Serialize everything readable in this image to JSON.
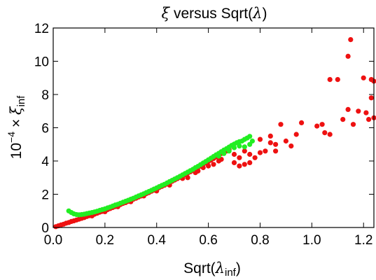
{
  "chart_data": {
    "type": "scatter",
    "title_parts": {
      "symbol": "ξ",
      "mid": " versus Sqrt(",
      "symbol2": "λ",
      "end": ")"
    },
    "xlabel_parts": {
      "main": "Sqrt(",
      "symbol": "λ",
      "sub": "inf",
      "end": ")"
    },
    "ylabel_parts": {
      "base": "10",
      "exp": "−4",
      "mid": " × ",
      "symbol": "ξ",
      "sub": "inf"
    },
    "xlim": [
      0.0,
      1.24
    ],
    "ylim": [
      0.0,
      12.0
    ],
    "x_ticks": [
      0.0,
      0.2,
      0.4,
      0.6,
      0.8,
      1.0,
      1.2
    ],
    "x_tick_labels": [
      "0.0",
      "0.2",
      "0.4",
      "0.6",
      "0.8",
      "1.0",
      "1.2"
    ],
    "y_ticks": [
      0,
      2,
      4,
      6,
      8,
      10,
      12
    ],
    "y_tick_labels": [
      "0",
      "2",
      "4",
      "6",
      "8",
      "10",
      "12"
    ],
    "grid": false,
    "legend": "none",
    "series": [
      {
        "color": "#ee1111",
        "points": [
          [
            0.01,
            0.05
          ],
          [
            0.02,
            0.1
          ],
          [
            0.03,
            0.15
          ],
          [
            0.04,
            0.2
          ],
          [
            0.05,
            0.26
          ],
          [
            0.06,
            0.3
          ],
          [
            0.07,
            0.36
          ],
          [
            0.08,
            0.4
          ],
          [
            0.09,
            0.45
          ],
          [
            0.1,
            0.5
          ],
          [
            0.11,
            0.55
          ],
          [
            0.12,
            0.6
          ],
          [
            0.13,
            0.66
          ],
          [
            0.14,
            0.71
          ],
          [
            0.15,
            0.76
          ],
          [
            0.16,
            0.8
          ],
          [
            0.17,
            0.86
          ],
          [
            0.18,
            0.92
          ],
          [
            0.19,
            0.97
          ],
          [
            0.2,
            1.02
          ],
          [
            0.21,
            1.08
          ],
          [
            0.22,
            1.14
          ],
          [
            0.23,
            1.2
          ],
          [
            0.24,
            1.26
          ],
          [
            0.25,
            1.32
          ],
          [
            0.26,
            1.38
          ],
          [
            0.27,
            1.45
          ],
          [
            0.28,
            1.5
          ],
          [
            0.29,
            1.57
          ],
          [
            0.3,
            1.63
          ],
          [
            0.31,
            1.7
          ],
          [
            0.32,
            1.76
          ],
          [
            0.33,
            1.83
          ],
          [
            0.34,
            1.9
          ],
          [
            0.35,
            1.97
          ],
          [
            0.36,
            2.04
          ],
          [
            0.37,
            2.1
          ],
          [
            0.38,
            2.18
          ],
          [
            0.39,
            2.25
          ],
          [
            0.4,
            2.32
          ],
          [
            0.41,
            2.4
          ],
          [
            0.42,
            2.47
          ],
          [
            0.43,
            2.54
          ],
          [
            0.44,
            2.62
          ],
          [
            0.45,
            2.7
          ],
          [
            0.46,
            2.78
          ],
          [
            0.47,
            2.86
          ],
          [
            0.48,
            2.94
          ],
          [
            0.49,
            3.02
          ],
          [
            0.5,
            3.1
          ],
          [
            0.51,
            3.18
          ],
          [
            0.52,
            3.27
          ],
          [
            0.53,
            3.35
          ],
          [
            0.54,
            3.44
          ],
          [
            0.55,
            3.52
          ],
          [
            0.56,
            3.6
          ],
          [
            0.57,
            3.7
          ],
          [
            0.58,
            3.8
          ],
          [
            0.59,
            3.88
          ],
          [
            0.6,
            3.97
          ],
          [
            0.61,
            4.05
          ],
          [
            0.62,
            4.15
          ],
          [
            0.63,
            4.25
          ],
          [
            0.64,
            4.35
          ],
          [
            0.65,
            4.45
          ],
          [
            0.66,
            4.55
          ],
          [
            0.67,
            4.6
          ],
          [
            0.68,
            4.7
          ],
          [
            0.15,
            0.7
          ],
          [
            0.2,
            0.95
          ],
          [
            0.25,
            1.25
          ],
          [
            0.3,
            1.55
          ],
          [
            0.35,
            1.9
          ],
          [
            0.4,
            2.2
          ],
          [
            0.45,
            2.55
          ],
          [
            0.5,
            2.95
          ],
          [
            0.55,
            3.3
          ],
          [
            0.6,
            3.7
          ],
          [
            0.65,
            4.1
          ],
          [
            0.7,
            4.4
          ],
          [
            0.72,
            4.2
          ],
          [
            0.74,
            4.6
          ],
          [
            0.76,
            4.4
          ],
          [
            0.78,
            4.2
          ],
          [
            0.8,
            4.5
          ],
          [
            0.82,
            4.6
          ],
          [
            0.76,
            3.9
          ],
          [
            0.74,
            3.8
          ],
          [
            0.72,
            3.7
          ],
          [
            0.7,
            3.9
          ],
          [
            0.84,
            5.1
          ],
          [
            0.86,
            5.0
          ],
          [
            0.88,
            6.2
          ],
          [
            0.9,
            5.2
          ],
          [
            0.92,
            4.9
          ],
          [
            0.94,
            5.6
          ],
          [
            0.96,
            6.3
          ],
          [
            0.86,
            4.6
          ],
          [
            0.8,
            5.3
          ],
          [
            0.84,
            5.5
          ],
          [
            1.02,
            6.1
          ],
          [
            1.04,
            6.2
          ],
          [
            1.07,
            5.6
          ],
          [
            1.05,
            5.7
          ],
          [
            1.12,
            6.5
          ],
          [
            1.16,
            6.2
          ],
          [
            1.07,
            8.9
          ],
          [
            1.1,
            8.9
          ],
          [
            1.15,
            11.3
          ],
          [
            1.14,
            10.3
          ],
          [
            1.18,
            7.0
          ],
          [
            1.2,
            9.0
          ],
          [
            1.21,
            6.9
          ],
          [
            1.22,
            6.5
          ],
          [
            1.23,
            8.9
          ],
          [
            1.23,
            7.8
          ],
          [
            1.24,
            8.8
          ],
          [
            1.24,
            6.6
          ],
          [
            1.14,
            7.1
          ],
          [
            0.62,
            3.8
          ],
          [
            0.64,
            4.0
          ],
          [
            0.58,
            3.6
          ],
          [
            0.56,
            3.4
          ],
          [
            0.52,
            3.0
          ]
        ]
      },
      {
        "color": "#22ee22",
        "points": [
          [
            0.06,
            1.0
          ],
          [
            0.07,
            0.9
          ],
          [
            0.08,
            0.82
          ],
          [
            0.09,
            0.78
          ],
          [
            0.1,
            0.76
          ],
          [
            0.11,
            0.78
          ],
          [
            0.12,
            0.8
          ],
          [
            0.13,
            0.84
          ],
          [
            0.14,
            0.87
          ],
          [
            0.15,
            0.9
          ],
          [
            0.16,
            0.94
          ],
          [
            0.17,
            0.98
          ],
          [
            0.18,
            1.03
          ],
          [
            0.19,
            1.08
          ],
          [
            0.2,
            1.12
          ],
          [
            0.21,
            1.18
          ],
          [
            0.22,
            1.23
          ],
          [
            0.23,
            1.29
          ],
          [
            0.24,
            1.35
          ],
          [
            0.25,
            1.4
          ],
          [
            0.26,
            1.46
          ],
          [
            0.27,
            1.52
          ],
          [
            0.28,
            1.58
          ],
          [
            0.29,
            1.64
          ],
          [
            0.3,
            1.7
          ],
          [
            0.31,
            1.76
          ],
          [
            0.32,
            1.83
          ],
          [
            0.33,
            1.9
          ],
          [
            0.34,
            1.96
          ],
          [
            0.35,
            2.03
          ],
          [
            0.36,
            2.1
          ],
          [
            0.37,
            2.17
          ],
          [
            0.38,
            2.24
          ],
          [
            0.39,
            2.31
          ],
          [
            0.4,
            2.38
          ],
          [
            0.41,
            2.46
          ],
          [
            0.42,
            2.53
          ],
          [
            0.43,
            2.6
          ],
          [
            0.44,
            2.68
          ],
          [
            0.45,
            2.76
          ],
          [
            0.46,
            2.84
          ],
          [
            0.47,
            2.92
          ],
          [
            0.48,
            3.0
          ],
          [
            0.49,
            3.08
          ],
          [
            0.5,
            3.16
          ],
          [
            0.51,
            3.25
          ],
          [
            0.52,
            3.33
          ],
          [
            0.53,
            3.42
          ],
          [
            0.54,
            3.5
          ],
          [
            0.55,
            3.6
          ],
          [
            0.56,
            3.68
          ],
          [
            0.57,
            3.78
          ],
          [
            0.58,
            3.88
          ],
          [
            0.59,
            3.97
          ],
          [
            0.6,
            4.07
          ],
          [
            0.61,
            4.17
          ],
          [
            0.62,
            4.27
          ],
          [
            0.63,
            4.37
          ],
          [
            0.64,
            4.46
          ],
          [
            0.65,
            4.56
          ],
          [
            0.66,
            4.66
          ],
          [
            0.67,
            4.74
          ],
          [
            0.68,
            4.84
          ],
          [
            0.69,
            4.94
          ],
          [
            0.7,
            5.02
          ],
          [
            0.71,
            5.1
          ],
          [
            0.72,
            5.16
          ],
          [
            0.73,
            5.2
          ],
          [
            0.74,
            5.3
          ],
          [
            0.75,
            5.38
          ],
          [
            0.76,
            5.48
          ],
          [
            0.77,
            5.2
          ],
          [
            0.76,
            5.0
          ],
          [
            0.74,
            4.85
          ],
          [
            0.72,
            4.9
          ],
          [
            0.7,
            4.8
          ],
          [
            0.68,
            4.6
          ],
          [
            0.66,
            4.45
          ],
          [
            0.64,
            4.3
          ]
        ]
      }
    ]
  }
}
